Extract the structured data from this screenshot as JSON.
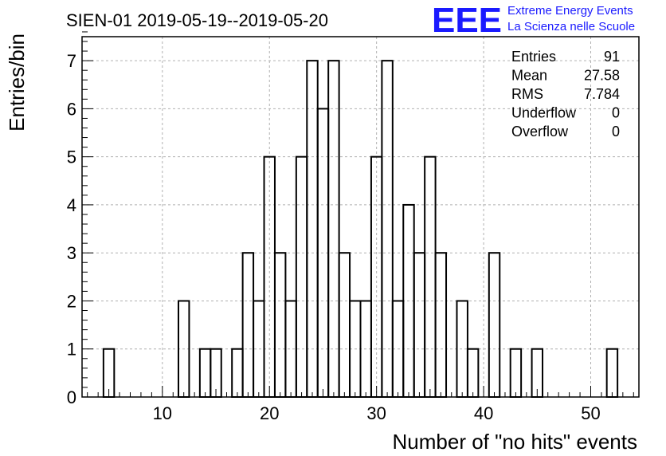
{
  "chart_data": {
    "type": "bar",
    "title": "SIEN-01 2019-05-19--2019-05-20",
    "xlabel": "Number of \"no hits\" events",
    "ylabel": "Entries/bin",
    "xlim": [
      2.5,
      54.5
    ],
    "ylim": [
      0,
      7.5
    ],
    "x_ticks": [
      10,
      20,
      30,
      40,
      50
    ],
    "y_ticks": [
      0,
      1,
      2,
      3,
      4,
      5,
      6,
      7
    ],
    "bin_width": 1,
    "grid": true,
    "bins": [
      {
        "x": 5,
        "value": 1
      },
      {
        "x": 12,
        "value": 2
      },
      {
        "x": 14,
        "value": 1
      },
      {
        "x": 15,
        "value": 1
      },
      {
        "x": 17,
        "value": 1
      },
      {
        "x": 18,
        "value": 3
      },
      {
        "x": 19,
        "value": 2
      },
      {
        "x": 20,
        "value": 5
      },
      {
        "x": 21,
        "value": 3
      },
      {
        "x": 22,
        "value": 2
      },
      {
        "x": 23,
        "value": 5
      },
      {
        "x": 24,
        "value": 7
      },
      {
        "x": 25,
        "value": 6
      },
      {
        "x": 26,
        "value": 7
      },
      {
        "x": 27,
        "value": 3
      },
      {
        "x": 28,
        "value": 2
      },
      {
        "x": 29,
        "value": 2
      },
      {
        "x": 30,
        "value": 5
      },
      {
        "x": 31,
        "value": 7
      },
      {
        "x": 32,
        "value": 2
      },
      {
        "x": 33,
        "value": 4
      },
      {
        "x": 34,
        "value": 3
      },
      {
        "x": 35,
        "value": 5
      },
      {
        "x": 36,
        "value": 3
      },
      {
        "x": 38,
        "value": 2
      },
      {
        "x": 39,
        "value": 1
      },
      {
        "x": 41,
        "value": 3
      },
      {
        "x": 43,
        "value": 1
      },
      {
        "x": 45,
        "value": 1
      },
      {
        "x": 52,
        "value": 1
      }
    ]
  },
  "stats": [
    {
      "label": "Entries",
      "value": "91"
    },
    {
      "label": "Mean",
      "value": "27.58"
    },
    {
      "label": "RMS",
      "value": "7.784"
    },
    {
      "label": "Underflow",
      "value": "0"
    },
    {
      "label": "Overflow",
      "value": "0"
    }
  ],
  "logo": {
    "mark": "EEE",
    "line1": "Extreme Energy Events",
    "line2": "La Scienza nelle Scuole",
    "color": "#1a1aff"
  }
}
